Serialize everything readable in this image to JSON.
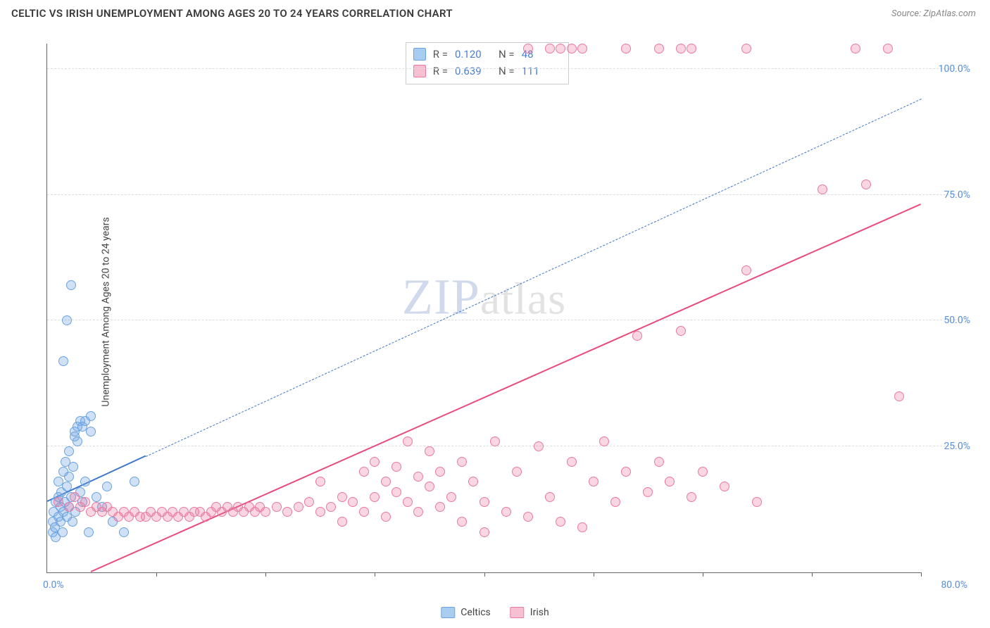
{
  "title": "CELTIC VS IRISH UNEMPLOYMENT AMONG AGES 20 TO 24 YEARS CORRELATION CHART",
  "source": "Source: ZipAtlas.com",
  "ylabel": "Unemployment Among Ages 20 to 24 years",
  "watermark_z": "ZIP",
  "watermark_rest": "atlas",
  "chart": {
    "type": "scatter",
    "xlim": [
      0,
      80
    ],
    "ylim": [
      0,
      105
    ],
    "x_min_label": "0.0%",
    "x_max_label": "80.0%",
    "xtick_positions": [
      10,
      20,
      30,
      40,
      50,
      60,
      70,
      80
    ],
    "yticks": [
      {
        "v": 25,
        "label": "25.0%"
      },
      {
        "v": 50,
        "label": "50.0%"
      },
      {
        "v": 75,
        "label": "75.0%"
      },
      {
        "v": 100,
        "label": "100.0%"
      }
    ],
    "background_color": "#ffffff",
    "grid_color": "#dddddd",
    "axis_color": "#666666",
    "tick_label_color": "#5a8fd6",
    "marker_radius": 7,
    "marker_border_width": 1.2,
    "series": [
      {
        "key": "celtics",
        "label": "Celtics",
        "fill": "rgba(120,170,230,0.35)",
        "stroke": "#6aa3e0",
        "swatch_fill": "#a9cdf0",
        "swatch_border": "#6aa3e0",
        "R": "0.120",
        "N": "48",
        "regression": {
          "x1": 0,
          "y1": 14,
          "x2_solid": 9,
          "y2_solid": 23,
          "x2": 80,
          "y2": 94,
          "color": "#3d76c7"
        },
        "points": [
          [
            0.5,
            8
          ],
          [
            0.5,
            10
          ],
          [
            0.6,
            12
          ],
          [
            0.7,
            9
          ],
          [
            0.8,
            14
          ],
          [
            0.8,
            7
          ],
          [
            1,
            11
          ],
          [
            1,
            15
          ],
          [
            1,
            18
          ],
          [
            1.2,
            10
          ],
          [
            1.2,
            13
          ],
          [
            1.3,
            16
          ],
          [
            1.4,
            8
          ],
          [
            1.5,
            20
          ],
          [
            1.5,
            12
          ],
          [
            1.6,
            14
          ],
          [
            1.7,
            22
          ],
          [
            1.8,
            11
          ],
          [
            1.8,
            17
          ],
          [
            2,
            13
          ],
          [
            2,
            19
          ],
          [
            2,
            24
          ],
          [
            2.2,
            15
          ],
          [
            2.3,
            10
          ],
          [
            2.4,
            21
          ],
          [
            2.5,
            27
          ],
          [
            2.6,
            12
          ],
          [
            2.8,
            29
          ],
          [
            3,
            16
          ],
          [
            3,
            30
          ],
          [
            3.2,
            14
          ],
          [
            3.5,
            18
          ],
          [
            3.8,
            8
          ],
          [
            4,
            31
          ],
          [
            4.5,
            15
          ],
          [
            5,
            13
          ],
          [
            5.5,
            17
          ],
          [
            6,
            10
          ],
          [
            7,
            8
          ],
          [
            8,
            18
          ],
          [
            1.5,
            42
          ],
          [
            1.8,
            50
          ],
          [
            2.2,
            57
          ],
          [
            2.5,
            28
          ],
          [
            2.8,
            26
          ],
          [
            3.2,
            29
          ],
          [
            3.5,
            30
          ],
          [
            4,
            28
          ]
        ]
      },
      {
        "key": "irish",
        "label": "Irish",
        "fill": "rgba(235,120,160,0.3)",
        "stroke": "#e87aa0",
        "swatch_fill": "#f6c0d2",
        "swatch_border": "#e87aa0",
        "R": "0.639",
        "N": "111",
        "regression": {
          "x1": 4,
          "y1": 0,
          "x2_solid": 80,
          "y2_solid": 73,
          "x2": 80,
          "y2": 73,
          "color": "#e94b7a"
        },
        "points": [
          [
            1,
            14
          ],
          [
            2,
            13
          ],
          [
            2.5,
            15
          ],
          [
            3,
            13
          ],
          [
            3.5,
            14
          ],
          [
            4,
            12
          ],
          [
            4.5,
            13
          ],
          [
            5,
            12
          ],
          [
            5.5,
            13
          ],
          [
            6,
            12
          ],
          [
            6.5,
            11
          ],
          [
            7,
            12
          ],
          [
            7.5,
            11
          ],
          [
            8,
            12
          ],
          [
            8.5,
            11
          ],
          [
            9,
            11
          ],
          [
            9.5,
            12
          ],
          [
            10,
            11
          ],
          [
            10.5,
            12
          ],
          [
            11,
            11
          ],
          [
            11.5,
            12
          ],
          [
            12,
            11
          ],
          [
            12.5,
            12
          ],
          [
            13,
            11
          ],
          [
            13.5,
            12
          ],
          [
            14,
            12
          ],
          [
            14.5,
            11
          ],
          [
            15,
            12
          ],
          [
            15.5,
            13
          ],
          [
            16,
            12
          ],
          [
            16.5,
            13
          ],
          [
            17,
            12
          ],
          [
            17.5,
            13
          ],
          [
            18,
            12
          ],
          [
            18.5,
            13
          ],
          [
            19,
            12
          ],
          [
            19.5,
            13
          ],
          [
            20,
            12
          ],
          [
            21,
            13
          ],
          [
            22,
            12
          ],
          [
            23,
            13
          ],
          [
            24,
            14
          ],
          [
            25,
            12
          ],
          [
            25,
            18
          ],
          [
            26,
            13
          ],
          [
            27,
            15
          ],
          [
            27,
            10
          ],
          [
            28,
            14
          ],
          [
            29,
            20
          ],
          [
            29,
            12
          ],
          [
            30,
            15
          ],
          [
            30,
            22
          ],
          [
            31,
            18
          ],
          [
            31,
            11
          ],
          [
            32,
            16
          ],
          [
            32,
            21
          ],
          [
            33,
            14
          ],
          [
            33,
            26
          ],
          [
            34,
            19
          ],
          [
            34,
            12
          ],
          [
            35,
            17
          ],
          [
            35,
            24
          ],
          [
            36,
            13
          ],
          [
            36,
            20
          ],
          [
            37,
            15
          ],
          [
            38,
            22
          ],
          [
            38,
            10
          ],
          [
            39,
            18
          ],
          [
            40,
            14
          ],
          [
            40,
            8
          ],
          [
            41,
            26
          ],
          [
            42,
            12
          ],
          [
            43,
            20
          ],
          [
            44,
            11
          ],
          [
            45,
            25
          ],
          [
            46,
            15
          ],
          [
            47,
            10
          ],
          [
            48,
            22
          ],
          [
            49,
            9
          ],
          [
            50,
            18
          ],
          [
            51,
            26
          ],
          [
            52,
            14
          ],
          [
            53,
            20
          ],
          [
            54,
            47
          ],
          [
            55,
            16
          ],
          [
            56,
            22
          ],
          [
            57,
            18
          ],
          [
            58,
            48
          ],
          [
            59,
            15
          ],
          [
            60,
            20
          ],
          [
            62,
            17
          ],
          [
            64,
            60
          ],
          [
            65,
            14
          ],
          [
            71,
            76
          ],
          [
            75,
            77
          ],
          [
            78,
            35
          ],
          [
            44,
            104
          ],
          [
            46,
            104
          ],
          [
            47,
            104
          ],
          [
            48,
            104
          ],
          [
            49,
            104
          ],
          [
            53,
            104
          ],
          [
            56,
            104
          ],
          [
            58,
            104
          ],
          [
            59,
            104
          ],
          [
            64,
            104
          ],
          [
            74,
            104
          ],
          [
            77,
            104
          ]
        ]
      }
    ]
  },
  "legend": {
    "items": [
      {
        "key": "celtics",
        "label": "Celtics"
      },
      {
        "key": "irish",
        "label": "Irish"
      }
    ]
  }
}
